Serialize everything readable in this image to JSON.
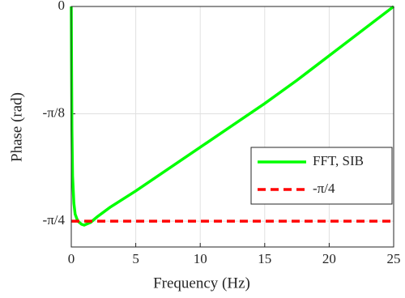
{
  "chart_data": {
    "type": "line",
    "xlabel": "Frequency (Hz)",
    "ylabel": "Phase  (rad)",
    "xlim": [
      0,
      25
    ],
    "xticks": [
      0,
      5,
      10,
      15,
      20,
      25
    ],
    "ylim": [
      -0.88,
      0
    ],
    "yticks": [
      {
        "value": -0.7854,
        "label": "-π/4"
      },
      {
        "value": -0.3927,
        "label": "-π/8"
      },
      0
    ],
    "grid": true,
    "legend": "right",
    "series": [
      {
        "name": "FFT, SIB",
        "color": "#00ff00",
        "linestyle": "solid",
        "x": [
          0,
          0.02,
          0.05,
          0.1,
          0.2,
          0.3,
          0.5,
          0.8,
          1,
          1.5,
          2,
          3,
          4,
          5,
          7.5,
          10,
          12.5,
          15,
          17.5,
          20,
          22.5,
          25
        ],
        "values": [
          0,
          -0.2,
          -0.45,
          -0.62,
          -0.72,
          -0.76,
          -0.785,
          -0.797,
          -0.8,
          -0.79,
          -0.77,
          -0.735,
          -0.705,
          -0.675,
          -0.595,
          -0.515,
          -0.435,
          -0.355,
          -0.27,
          -0.18,
          -0.09,
          0
        ]
      },
      {
        "name": "-π/4",
        "color": "#ff0000",
        "linestyle": "dashed",
        "x": [
          0,
          25
        ],
        "values": [
          -0.7854,
          -0.7854
        ]
      }
    ]
  }
}
